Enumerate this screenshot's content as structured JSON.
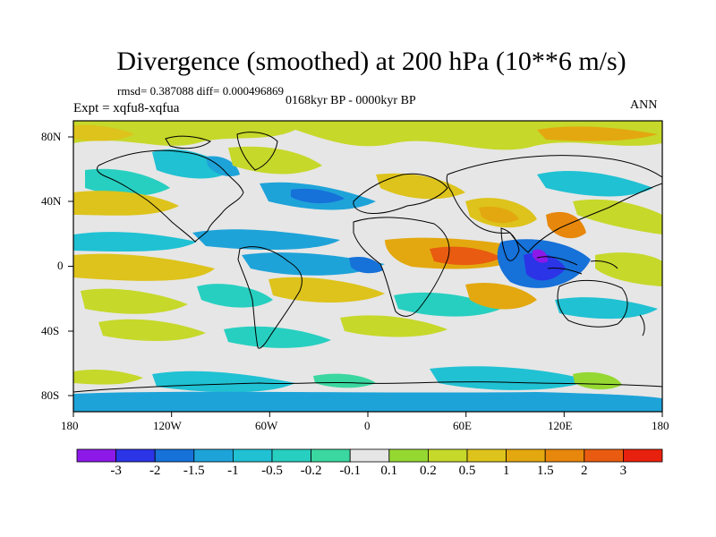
{
  "title": "Divergence (smoothed) at 200 hPa (10**6 m/s)",
  "stats": {
    "rmsd": "rmsd= 0.387088 diff= 0.000496869",
    "period": "0168kyr BP - 0000kyr BP",
    "experiment": "Expt = xqfu8-xqfua",
    "season": "ANN"
  },
  "map": {
    "projection": "cylindrical-equidistant",
    "lon_range": [
      -180,
      180
    ],
    "lat_range": [
      -90,
      90
    ],
    "lon_ticks": [
      "180",
      "120W",
      "60W",
      "0",
      "60E",
      "120E",
      "180"
    ],
    "lat_ticks": [
      "80N",
      "40N",
      "0",
      "40S",
      "80S"
    ],
    "background_color": "#e6e6e6",
    "coastline_color": "#000000"
  },
  "colorbar": {
    "colors": [
      "#8c19e8",
      "#2b34e6",
      "#1671d9",
      "#1ea3d9",
      "#20c1d3",
      "#27cfc0",
      "#3bd7a0",
      "#e6e6e6",
      "#95d832",
      "#c6d82a",
      "#ddc31b",
      "#e3a80f",
      "#e7870c",
      "#e85b10",
      "#e8210e"
    ],
    "labels": [
      "-3",
      "-2",
      "-1.5",
      "-1",
      "-0.5",
      "-0.2",
      "-0.1",
      "0.1",
      "0.2",
      "0.5",
      "1",
      "1.5",
      "2",
      "3"
    ]
  }
}
